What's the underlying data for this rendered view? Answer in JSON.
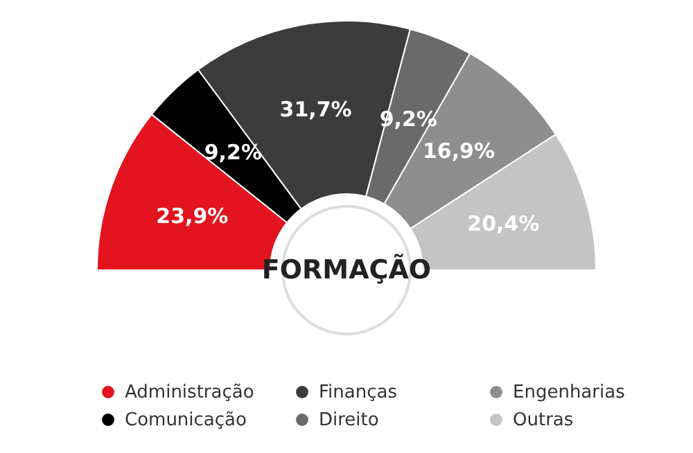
{
  "chart_data": {
    "type": "donut",
    "title": "FORMAÇÃO",
    "categories": [
      "Administração",
      "Comunicação",
      "Finanças",
      "Direito",
      "Engenharias",
      "Outras"
    ],
    "values": [
      23.9,
      9.2,
      31.7,
      9.2,
      16.9,
      20.4
    ],
    "value_labels": [
      "23,9%",
      "9,2%",
      "31,7%",
      "9,2%",
      "16,9%",
      "20,4%"
    ],
    "colors": [
      "#e3141f",
      "#000000",
      "#3c3c3c",
      "#6a6a6a",
      "#8e8e8e",
      "#c4c4c4"
    ],
    "legend": "bottom"
  }
}
